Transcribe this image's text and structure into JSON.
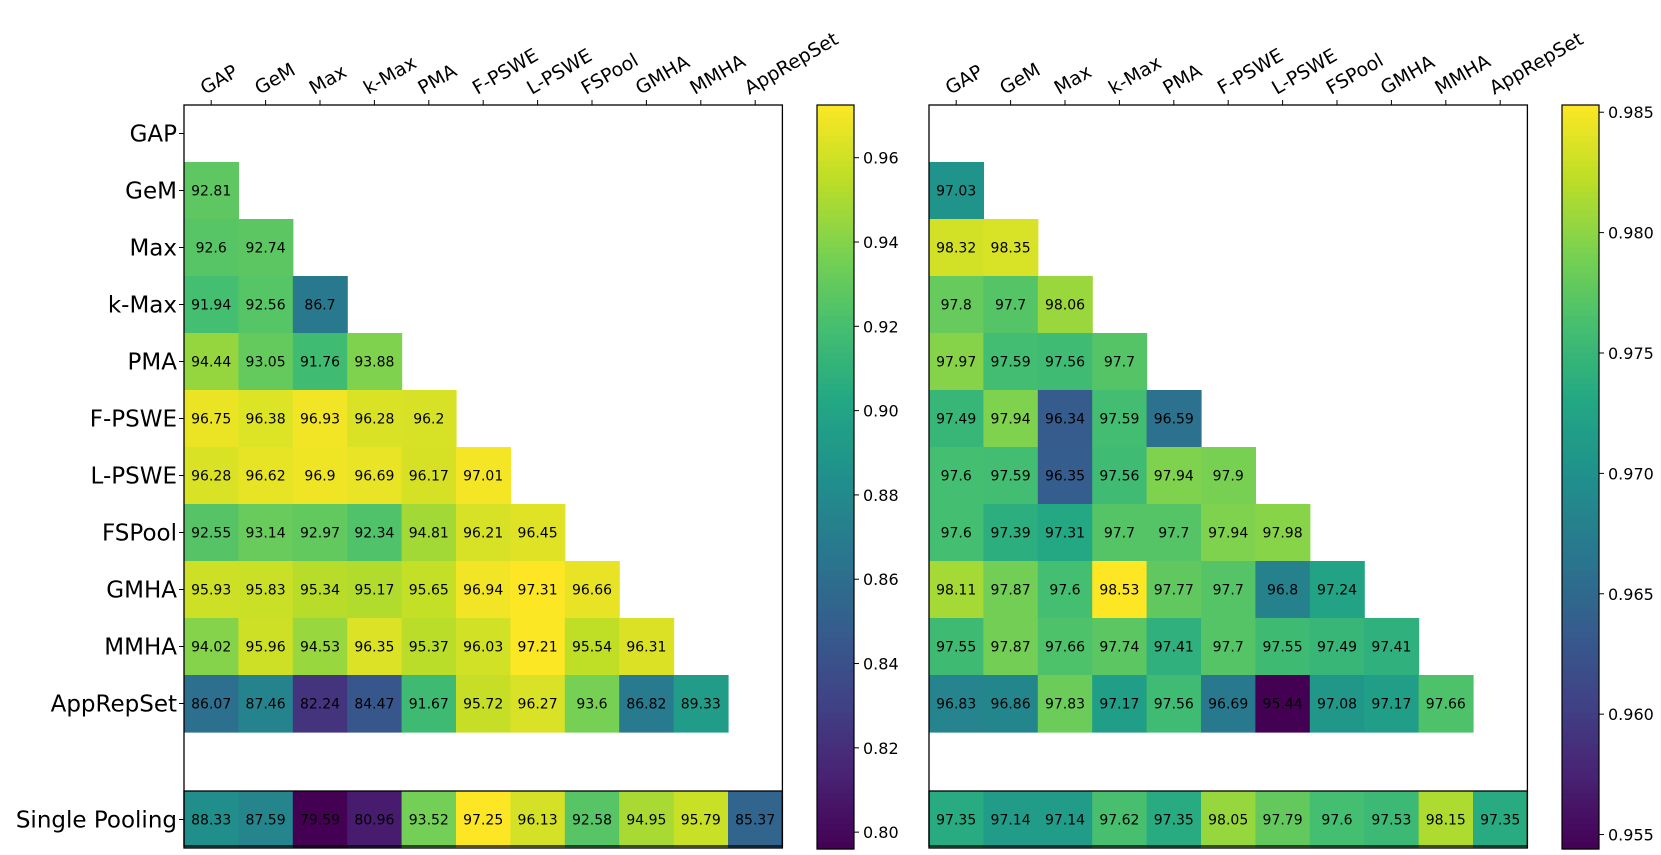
{
  "chart_data": [
    {
      "type": "heatmap",
      "title": "",
      "columns": [
        "GAP",
        "GeM",
        "Max",
        "k-Max",
        "PMA",
        "F-PSWE",
        "L-PSWE",
        "FSPool",
        "GMHA",
        "MMHA",
        "AppRepSet"
      ],
      "rows": [
        "GAP",
        "GeM",
        "Max",
        "k-Max",
        "PMA",
        "F-PSWE",
        "L-PSWE",
        "FSPool",
        "GMHA",
        "MMHA",
        "AppRepSet"
      ],
      "values": [
        [],
        [
          "92.81"
        ],
        [
          "92.6",
          "92.74"
        ],
        [
          "91.94",
          "92.56",
          "86.7"
        ],
        [
          "94.44",
          "93.05",
          "91.76",
          "93.88"
        ],
        [
          "96.75",
          "96.38",
          "96.93",
          "96.28",
          "96.2"
        ],
        [
          "96.28",
          "96.62",
          "96.9",
          "96.69",
          "96.17",
          "97.01"
        ],
        [
          "92.55",
          "93.14",
          "92.97",
          "92.34",
          "94.81",
          "96.21",
          "96.45"
        ],
        [
          "95.93",
          "95.83",
          "95.34",
          "95.17",
          "95.65",
          "96.94",
          "97.31",
          "96.66"
        ],
        [
          "94.02",
          "95.96",
          "94.53",
          "96.35",
          "95.37",
          "96.03",
          "97.21",
          "95.54",
          "96.31"
        ],
        [
          "86.07",
          "87.46",
          "82.24",
          "84.47",
          "91.67",
          "95.72",
          "96.27",
          "93.6",
          "86.82",
          "89.33"
        ]
      ],
      "single_label": "Single Pooling",
      "single_values": [
        "88.33",
        "87.59",
        "79.59",
        "80.96",
        "93.52",
        "97.25",
        "96.13",
        "92.58",
        "94.95",
        "95.79",
        "85.37"
      ],
      "colorbar": {
        "vmin": 0.796,
        "vmax": 0.9725,
        "ticks": [
          "0.80",
          "0.82",
          "0.84",
          "0.86",
          "0.88",
          "0.90",
          "0.92",
          "0.94",
          "0.96"
        ],
        "colormap": "viridis"
      }
    },
    {
      "type": "heatmap",
      "title": "",
      "columns": [
        "GAP",
        "GeM",
        "Max",
        "k-Max",
        "PMA",
        "F-PSWE",
        "L-PSWE",
        "FSPool",
        "GMHA",
        "MMHA",
        "AppRepSet"
      ],
      "rows": [
        "GAP",
        "GeM",
        "Max",
        "k-Max",
        "PMA",
        "F-PSWE",
        "L-PSWE",
        "FSPool",
        "GMHA",
        "MMHA",
        "AppRepSet"
      ],
      "values": [
        [],
        [
          "97.03"
        ],
        [
          "98.32",
          "98.35"
        ],
        [
          "97.8",
          "97.7",
          "98.06"
        ],
        [
          "97.97",
          "97.59",
          "97.56",
          "97.7"
        ],
        [
          "97.49",
          "97.94",
          "96.34",
          "97.59",
          "96.59"
        ],
        [
          "97.6",
          "97.59",
          "96.35",
          "97.56",
          "97.94",
          "97.9"
        ],
        [
          "97.6",
          "97.39",
          "97.31",
          "97.7",
          "97.7",
          "97.94",
          "97.98"
        ],
        [
          "98.11",
          "97.87",
          "97.6",
          "98.53",
          "97.77",
          "97.7",
          "96.8",
          "97.24"
        ],
        [
          "97.55",
          "97.87",
          "97.66",
          "97.74",
          "97.41",
          "97.7",
          "97.55",
          "97.49",
          "97.41"
        ],
        [
          "96.83",
          "96.86",
          "97.83",
          "97.17",
          "97.56",
          "96.69",
          "95.44",
          "97.08",
          "97.17",
          "97.66"
        ]
      ],
      "single_label": "",
      "single_values": [
        "97.35",
        "97.14",
        "97.14",
        "97.62",
        "97.35",
        "98.05",
        "97.79",
        "97.6",
        "97.53",
        "98.15",
        "97.35"
      ],
      "colorbar": {
        "vmin": 0.9544,
        "vmax": 0.9853,
        "ticks": [
          "0.955",
          "0.960",
          "0.965",
          "0.970",
          "0.975",
          "0.980",
          "0.985"
        ],
        "colormap": "viridis"
      }
    }
  ]
}
